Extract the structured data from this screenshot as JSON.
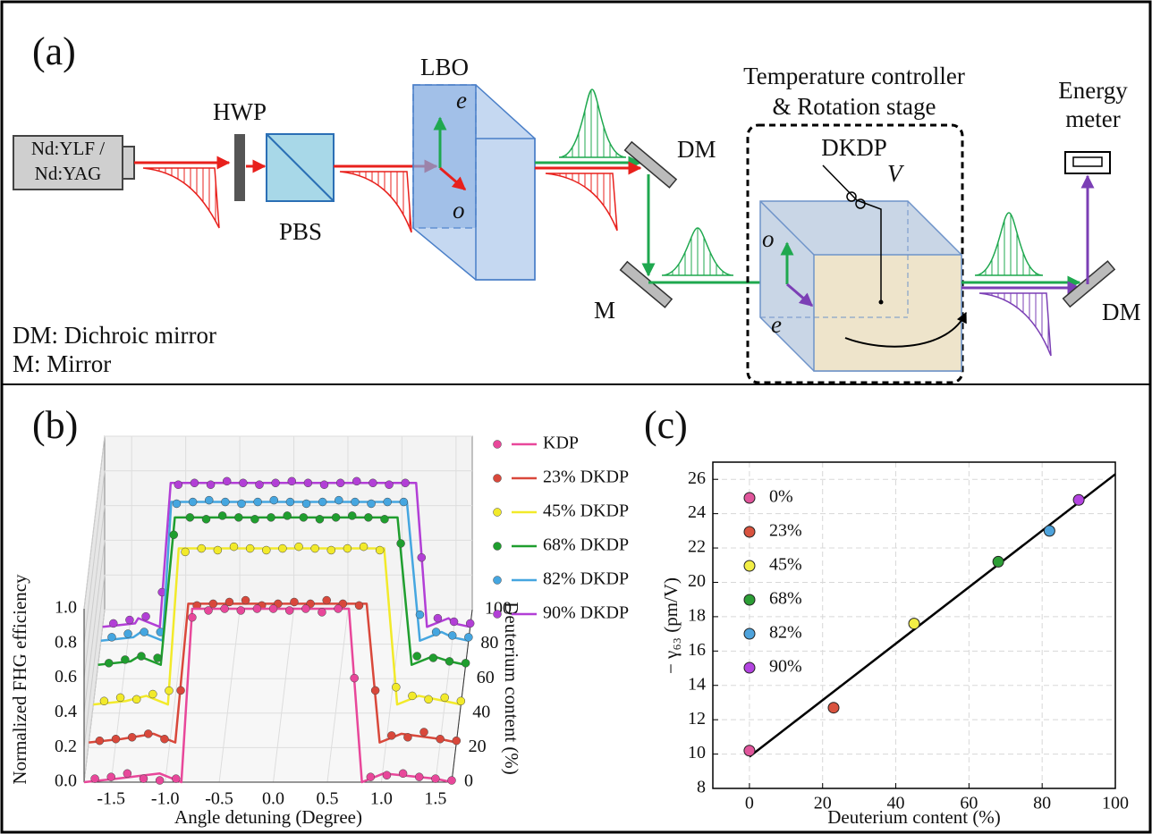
{
  "diagram": {
    "label": "(a)",
    "laser": [
      "Nd:YLF /",
      "Nd:YAG"
    ],
    "hwp": "HWP",
    "pbs": "PBS",
    "lbo": "LBO",
    "lbo_axes": [
      "e",
      "o"
    ],
    "dm1": "DM",
    "m": "M",
    "stage": [
      "Temperature controller",
      "& Rotation stage"
    ],
    "dkdp": "DKDP",
    "voltage": "V",
    "dkdp_axes": [
      "o",
      "e"
    ],
    "meter": [
      "Energy",
      "meter"
    ],
    "dm2": "DM",
    "key": [
      "DM: Dichroic mirror",
      "M: Mirror"
    ]
  },
  "chart_data": [
    {
      "type": "line3d",
      "panel_label": "(b)",
      "x_label": "Angle detuning (Degree)",
      "y_label": "Normalized FHG efficiency",
      "z_label": "Deuterium content (%)",
      "xlim": [
        -1.75,
        1.65
      ],
      "xticks": [
        -1.5,
        {
          "value": -1,
          "label": "-1.0"
        },
        -0.5,
        {
          "value": 0,
          "label": "0.0"
        },
        0.5,
        {
          "value": 1,
          "label": "1.0"
        },
        1.5
      ],
      "ylim": [
        0,
        1
      ],
      "yticks": [
        {
          "value": 0,
          "label": "0.0"
        },
        0.2,
        0.4,
        0.6,
        0.8,
        {
          "value": 1,
          "label": "1.0"
        }
      ],
      "zlim": [
        0,
        100
      ],
      "zticks": [
        0,
        20,
        40,
        60,
        80,
        100
      ],
      "x": [
        -1.65,
        -1.5,
        -1.35,
        -1.2,
        -1.05,
        -0.9,
        -0.75,
        -0.6,
        -0.45,
        -0.3,
        -0.15,
        0,
        0.15,
        0.3,
        0.45,
        0.6,
        0.75,
        0.9,
        1.05,
        1.2,
        1.35,
        1.5,
        1.65
      ],
      "series": [
        {
          "name": "KDP",
          "color": "#e8479a",
          "z": 0,
          "values": [
            0.02,
            0.03,
            0.05,
            0.02,
            0.01,
            0.02,
            0.95,
            0.99,
            1.0,
            0.99,
            1.0,
            1.0,
            0.99,
            1.0,
            0.98,
            1.0,
            0.6,
            0.03,
            0.04,
            0.05,
            0.03,
            0.02,
            0.01
          ],
          "fit_x": [
            -1.75,
            -1.45,
            -1.05,
            -0.85,
            -0.75,
            0.7,
            0.82,
            1.02,
            1.5,
            1.65
          ],
          "fit": [
            0,
            0.02,
            0.05,
            0,
            1,
            1,
            0,
            0.05,
            0.02,
            0
          ]
        },
        {
          "name": "23% DKDP",
          "color": "#d9483b",
          "z": 23,
          "values": [
            0.01,
            0.02,
            0.03,
            0.05,
            0.02,
            0.3,
            0.79,
            0.8,
            0.81,
            0.82,
            0.79,
            0.8,
            0.81,
            0.8,
            0.82,
            0.8,
            0.79,
            0.3,
            0.04,
            0.03,
            0.06,
            0.02,
            0.01
          ],
          "fit_x": [
            -1.75,
            -1.45,
            -1.15,
            -0.95,
            -0.83,
            0.82,
            0.94,
            1.14,
            1.5,
            1.65
          ],
          "fit": [
            0,
            0.02,
            0.05,
            0,
            0.8,
            0.8,
            0,
            0.05,
            0.02,
            0
          ]
        },
        {
          "name": "45% DKDP",
          "color": "#f2ea2a",
          "z": 45,
          "values": [
            0.02,
            0.04,
            0.03,
            0.06,
            0.08,
            0.88,
            0.9,
            0.89,
            0.91,
            0.9,
            0.89,
            0.9,
            0.91,
            0.9,
            0.89,
            0.9,
            0.91,
            0.89,
            0.1,
            0.05,
            0.03,
            0.04,
            0.02
          ],
          "fit_x": [
            -1.75,
            -1.45,
            -1.26,
            -1.06,
            -0.96,
            0.94,
            1.06,
            1.26,
            1.5,
            1.65
          ],
          "fit": [
            0,
            0.02,
            0.05,
            0,
            0.9,
            0.9,
            0,
            0.05,
            0.02,
            0
          ]
        },
        {
          "name": "68% DKDP",
          "color": "#1f9e2e",
          "z": 68,
          "values": [
            0.01,
            0.03,
            0.05,
            0.04,
            0.75,
            0.85,
            0.84,
            0.86,
            0.85,
            0.84,
            0.85,
            0.86,
            0.85,
            0.84,
            0.85,
            0.86,
            0.85,
            0.84,
            0.7,
            0.05,
            0.04,
            0.02,
            0.01
          ],
          "fit_x": [
            -1.75,
            -1.45,
            -1.37,
            -1.17,
            -1.04,
            1.02,
            1.15,
            1.35,
            1.5,
            1.65
          ],
          "fit": [
            0,
            0.02,
            0.05,
            0,
            0.85,
            0.85,
            0,
            0.05,
            0.02,
            0
          ]
        },
        {
          "name": "82% DKDP",
          "color": "#45a6e0",
          "z": 82,
          "values": [
            0.02,
            0.04,
            0.05,
            0.05,
            0.79,
            0.8,
            0.81,
            0.8,
            0.79,
            0.8,
            0.81,
            0.8,
            0.79,
            0.8,
            0.81,
            0.8,
            0.79,
            0.8,
            0.8,
            0.15,
            0.05,
            0.03,
            0.02
          ],
          "fit_x": [
            -1.75,
            -1.45,
            -1.38,
            -1.18,
            -1.1,
            1.08,
            1.2,
            1.4,
            1.5,
            1.65
          ],
          "fit": [
            0,
            0.02,
            0.05,
            0,
            0.8,
            0.8,
            0,
            0.05,
            0.02,
            0
          ]
        },
        {
          "name": "90% DKDP",
          "color": "#b23fd6",
          "z": 90,
          "values": [
            0.02,
            0.04,
            0.06,
            0.2,
            0.82,
            0.83,
            0.82,
            0.84,
            0.83,
            0.82,
            0.83,
            0.84,
            0.83,
            0.82,
            0.83,
            0.84,
            0.83,
            0.82,
            0.83,
            0.4,
            0.05,
            0.03,
            0.02
          ],
          "fit_x": [
            -1.75,
            -1.45,
            -1.42,
            -1.22,
            -1.12,
            1.15,
            1.25,
            1.45,
            1.5,
            1.65
          ],
          "fit": [
            0,
            0.02,
            0.05,
            0,
            0.83,
            0.83,
            0,
            0.05,
            0.02,
            0
          ]
        }
      ]
    },
    {
      "type": "scatter",
      "panel_label": "(c)",
      "x_label": "Deuterium content (%)",
      "y_label": "− γ₆₃ (pm/V)",
      "xlim": [
        -10,
        100
      ],
      "xticks": [
        0,
        20,
        40,
        60,
        80,
        100
      ],
      "ylim": [
        8,
        27
      ],
      "yticks": [
        8,
        10,
        12,
        14,
        16,
        18,
        20,
        22,
        24,
        26
      ],
      "grid": true,
      "series": [
        {
          "name": "0%",
          "color": "#e0559b",
          "x": [
            0
          ],
          "values": [
            10.2
          ]
        },
        {
          "name": "23%",
          "color": "#d9533f",
          "x": [
            23
          ],
          "values": [
            12.7
          ]
        },
        {
          "name": "45%",
          "color": "#f2ee45",
          "x": [
            45
          ],
          "values": [
            17.6
          ]
        },
        {
          "name": "68%",
          "color": "#2c9e35",
          "x": [
            68
          ],
          "values": [
            21.2
          ]
        },
        {
          "name": "82%",
          "color": "#4ea3dc",
          "x": [
            82
          ],
          "values": [
            23.0
          ]
        },
        {
          "name": "90%",
          "color": "#b344e0",
          "x": [
            90
          ],
          "values": [
            24.8
          ]
        }
      ],
      "fit_line": {
        "color": "#000000",
        "x": [
          0,
          100
        ],
        "values": [
          9.85,
          26.3
        ]
      }
    }
  ]
}
